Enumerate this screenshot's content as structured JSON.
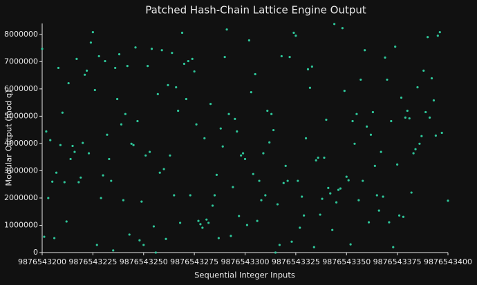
{
  "chart_data": {
    "type": "scatter",
    "title": "Patched Hash-Chain Lattice Engine Output",
    "x_label": "Sequential Integer Inputs",
    "y_label": "Modular Output (mod q)",
    "color": "#2ec79a",
    "xlim": [
      9876543200,
      9876543400
    ],
    "ylim": [
      0,
      8400000
    ],
    "xticks": [
      9876543200,
      9876543225,
      9876543250,
      9876543275,
      9876543300,
      9876543325,
      9876543350,
      9876543375,
      9876543400
    ],
    "yticks": [
      0,
      1000000,
      2000000,
      3000000,
      4000000,
      5000000,
      6000000,
      7000000,
      8000000
    ],
    "x": [
      9876543200,
      9876543201,
      9876543202,
      9876543203,
      9876543204,
      9876543205,
      9876543206,
      9876543207,
      9876543208,
      9876543209,
      9876543210,
      9876543211,
      9876543212,
      9876543213,
      9876543214,
      9876543215,
      9876543216,
      9876543217,
      9876543218,
      9876543219,
      9876543220,
      9876543221,
      9876543222,
      9876543223,
      9876543224,
      9876543225,
      9876543226,
      9876543227,
      9876543228,
      9876543229,
      9876543230,
      9876543231,
      9876543232,
      9876543233,
      9876543234,
      9876543235,
      9876543236,
      9876543237,
      9876543238,
      9876543239,
      9876543240,
      9876543241,
      9876543242,
      9876543243,
      9876543244,
      9876543245,
      9876543246,
      9876543247,
      9876543248,
      9876543249,
      9876543250,
      9876543251,
      9876543252,
      9876543253,
      9876543254,
      9876543255,
      9876543256,
      9876543257,
      9876543258,
      9876543259,
      9876543260,
      9876543261,
      9876543262,
      9876543263,
      9876543264,
      9876543265,
      9876543266,
      9876543267,
      9876543268,
      9876543269,
      9876543270,
      9876543271,
      9876543272,
      9876543273,
      9876543274,
      9876543275,
      9876543276,
      9876543277,
      9876543278,
      9876543279,
      9876543280,
      9876543281,
      9876543282,
      9876543283,
      9876543284,
      9876543285,
      9876543286,
      9876543287,
      9876543288,
      9876543289,
      9876543290,
      9876543291,
      9876543292,
      9876543293,
      9876543294,
      9876543295,
      9876543296,
      9876543297,
      9876543298,
      9876543299,
      9876543300,
      9876543301,
      9876543302,
      9876543303,
      9876543304,
      9876543305,
      9876543306,
      9876543307,
      9876543308,
      9876543309,
      9876543310,
      9876543311,
      9876543312,
      9876543313,
      9876543314,
      9876543315,
      9876543316,
      9876543317,
      9876543318,
      9876543319,
      9876543320,
      9876543321,
      9876543322,
      9876543323,
      9876543324,
      9876543325,
      9876543326,
      9876543327,
      9876543328,
      9876543329,
      9876543330,
      9876543331,
      9876543332,
      9876543333,
      9876543334,
      9876543335,
      9876543336,
      9876543337,
      9876543338,
      9876543339,
      9876543340,
      9876543341,
      9876543342,
      9876543343,
      9876543344,
      9876543345,
      9876543346,
      9876543347,
      9876543348,
      9876543349,
      9876543350,
      9876543351,
      9876543352,
      9876543353,
      9876543354,
      9876543355,
      9876543356,
      9876543357,
      9876543358,
      9876543359,
      9876543360,
      9876543361,
      9876543362,
      9876543363,
      9876543364,
      9876543365,
      9876543366,
      9876543367,
      9876543368,
      9876543369,
      9876543370,
      9876543371,
      9876543372,
      9876543373,
      9876543374,
      9876543375,
      9876543376,
      9876543377,
      9876543378,
      9876543379,
      9876543380,
      9876543381,
      9876543382,
      9876543383,
      9876543384,
      9876543385,
      9876543386,
      9876543387,
      9876543388,
      9876543389,
      9876543390,
      9876543391,
      9876543392,
      9876543393,
      9876543394,
      9876543395,
      9876543396,
      9876543397,
      9876543400
    ],
    "values": [
      7470000,
      580000,
      4440000,
      2000000,
      4120000,
      2600000,
      530000,
      2930000,
      6770000,
      3940000,
      5130000,
      2580000,
      1140000,
      6210000,
      3430000,
      3910000,
      3690000,
      7100000,
      2580000,
      2750000,
      4020000,
      6520000,
      6670000,
      3640000,
      7700000,
      8080000,
      5960000,
      280000,
      7200000,
      2000000,
      2830000,
      7020000,
      4320000,
      3430000,
      2630000,
      80000,
      6770000,
      5630000,
      7270000,
      4700000,
      1920000,
      5080000,
      6840000,
      660000,
      3990000,
      3940000,
      7520000,
      4820000,
      450000,
      1870000,
      280000,
      3560000,
      6840000,
      3690000,
      7470000,
      960000,
      0,
      5810000,
      2930000,
      7420000,
      3060000,
      500000,
      6140000,
      3560000,
      7320000,
      2100000,
      6060000,
      5200000,
      1090000,
      8060000,
      6920000,
      5630000,
      7020000,
      2100000,
      7100000,
      6640000,
      4700000,
      1160000,
      1040000,
      910000,
      4190000,
      1210000,
      1090000,
      5450000,
      1720000,
      2100000,
      2850000,
      530000,
      4550000,
      3890000,
      7170000,
      8180000,
      5080000,
      610000,
      2400000,
      4900000,
      4440000,
      1340000,
      3560000,
      3640000,
      3430000,
      1010000,
      7780000,
      5880000,
      2880000,
      6540000,
      1160000,
      2630000,
      1920000,
      3640000,
      2100000,
      5200000,
      4040000,
      5080000,
      4490000,
      0,
      1770000,
      280000,
      7200000,
      2550000,
      3180000,
      2630000,
      7170000,
      400000,
      8060000,
      7950000,
      2630000,
      910000,
      2050000,
      1360000,
      4190000,
      6720000,
      6040000,
      6820000,
      200000,
      3380000,
      3480000,
      1390000,
      1970000,
      3480000,
      4870000,
      2370000,
      2170000,
      830000,
      8380000,
      1840000,
      2300000,
      2350000,
      8230000,
      5930000,
      2780000,
      2650000,
      300000,
      4820000,
      3990000,
      5080000,
      1920000,
      6340000,
      2630000,
      7420000,
      4620000,
      1110000,
      4320000,
      5150000,
      3180000,
      2100000,
      1540000,
      3690000,
      2050000,
      7150000,
      6340000,
      1110000,
      4820000,
      200000,
      7550000,
      3230000,
      1360000,
      5680000,
      1310000,
      4950000,
      5200000,
      4920000,
      2200000,
      3640000,
      3790000,
      6060000,
      3990000,
      4270000,
      6670000,
      5150000,
      7900000,
      4950000,
      6390000,
      5580000,
      4290000,
      7950000,
      8080000,
      4390000,
      1900000
    ]
  }
}
